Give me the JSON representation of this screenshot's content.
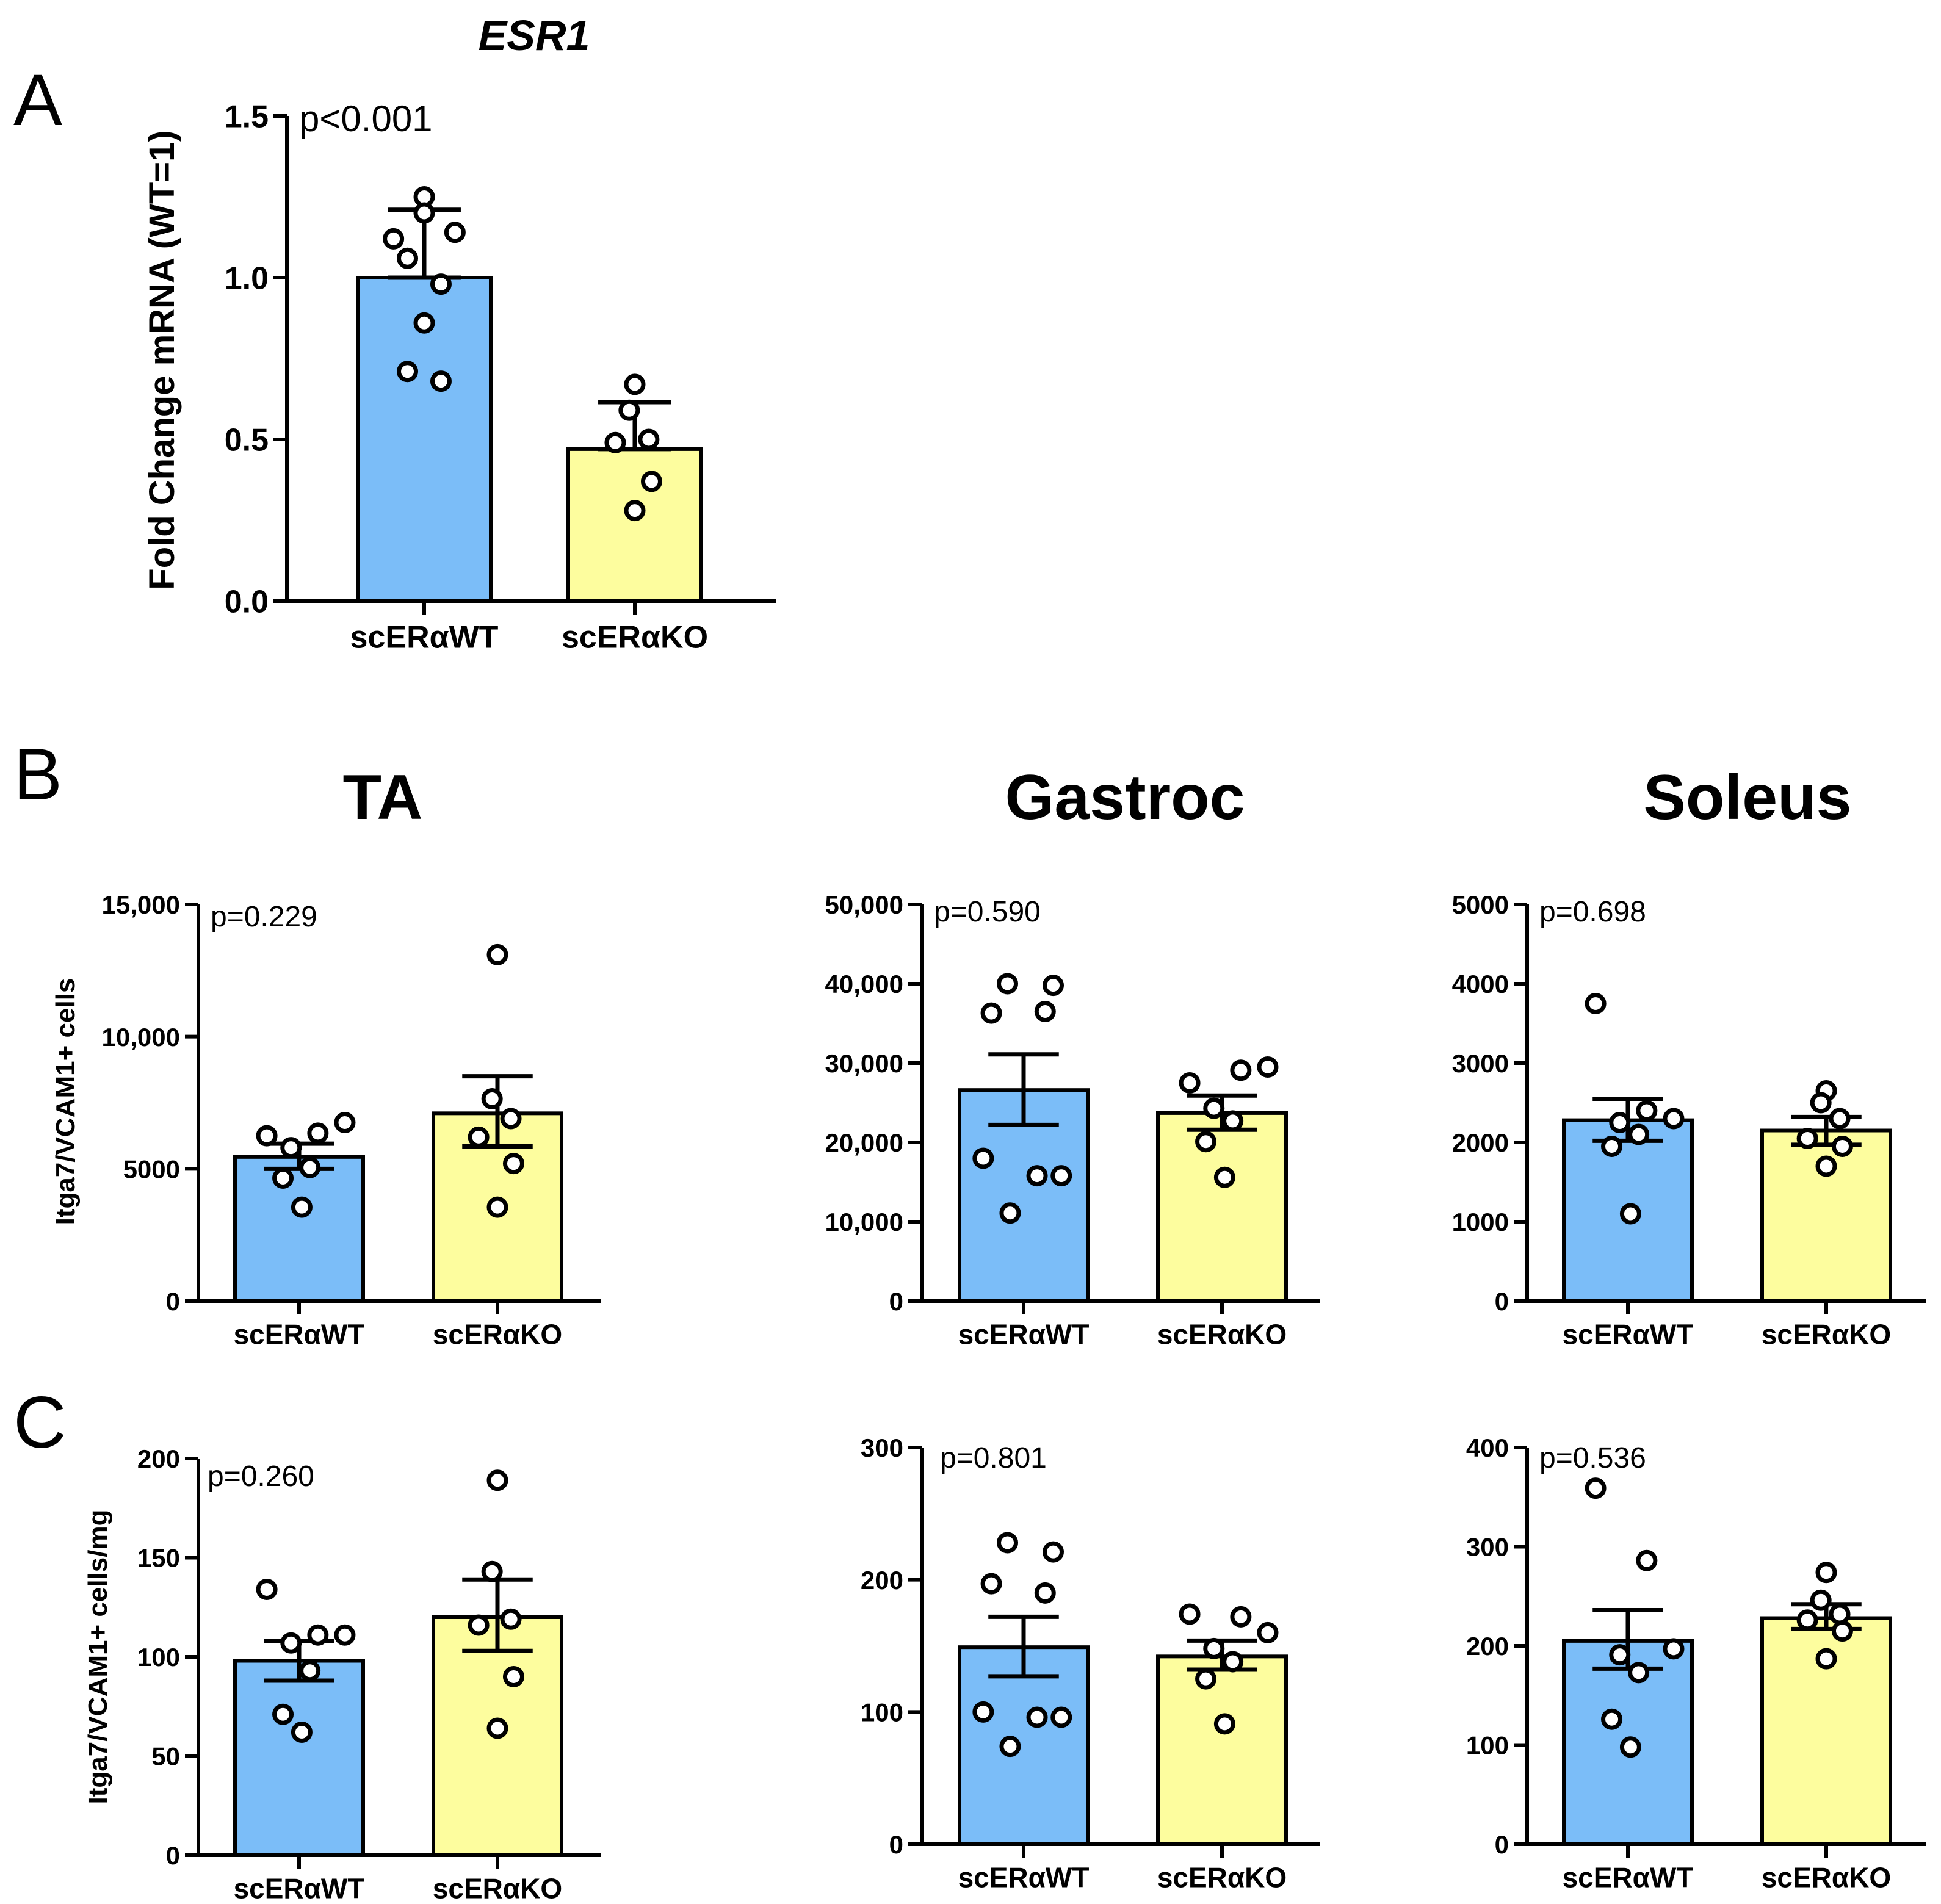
{
  "panel_letters": [
    "A",
    "B",
    "C"
  ],
  "column_titles": [
    "TA",
    "Gastroc",
    "Soleus"
  ],
  "colors": {
    "wt": "#7bbdf8",
    "ko": "#fdfd9e"
  },
  "chart_data": [
    {
      "id": "A",
      "type": "bar",
      "title": "ESR1",
      "title_italic": true,
      "ylabel": "Fold Change mRNA (WT=1)",
      "ylim": [
        0,
        1.5
      ],
      "yticks": [
        0,
        0.5,
        1.0,
        1.5
      ],
      "ytick_labels": [
        "0.0",
        "0.5",
        "1.0",
        "1.5"
      ],
      "categories": [
        "scERαWT",
        "scERαKO"
      ],
      "annotation": "p<0.001",
      "series": [
        {
          "name": "scERαWT",
          "mean": 1.0,
          "err": [
            1.0,
            1.21
          ],
          "points": [
            1.25,
            1.2,
            1.14,
            1.12,
            1.06,
            0.98,
            0.86,
            0.71,
            0.68
          ]
        },
        {
          "name": "scERαKO",
          "mean": 0.47,
          "err": [
            0.47,
            0.615
          ],
          "points": [
            0.67,
            0.59,
            0.5,
            0.49,
            0.37,
            0.28
          ]
        }
      ]
    },
    {
      "id": "B-TA",
      "type": "bar",
      "title": "",
      "ylabel": "Itga7/VCAM1+ cells",
      "ylim": [
        0,
        15000
      ],
      "yticks": [
        0,
        5000,
        10000,
        15000
      ],
      "ytick_labels": [
        "0",
        "5000",
        "10,000",
        "15,000"
      ],
      "categories": [
        "scERαWT",
        "scERαKO"
      ],
      "annotation": "p=0.229",
      "series": [
        {
          "name": "scERαWT",
          "mean": 5450,
          "err": [
            5000,
            5950
          ],
          "points": [
            6250,
            6350,
            6750,
            5800,
            5050,
            4650,
            3550
          ]
        },
        {
          "name": "scERαKO",
          "mean": 7100,
          "err": [
            5850,
            8500
          ],
          "points": [
            13100,
            7650,
            6900,
            6200,
            5200,
            3550
          ]
        }
      ]
    },
    {
      "id": "B-Gastroc",
      "type": "bar",
      "title": "",
      "ylabel": "",
      "ylim": [
        0,
        50000
      ],
      "yticks": [
        0,
        10000,
        20000,
        30000,
        40000,
        50000
      ],
      "ytick_labels": [
        "0",
        "10,000",
        "20,000",
        "30,000",
        "40,000",
        "50,000"
      ],
      "categories": [
        "scERαWT",
        "scERαKO"
      ],
      "annotation": "p=0.590",
      "series": [
        {
          "name": "scERαWT",
          "mean": 26600,
          "err": [
            22200,
            31100
          ],
          "points": [
            40000,
            39800,
            36300,
            36500,
            18000,
            15800,
            15800,
            11100
          ]
        },
        {
          "name": "scERαKO",
          "mean": 23700,
          "err": [
            21600,
            25900
          ],
          "points": [
            27500,
            29100,
            29500,
            24300,
            22700,
            20100,
            15600
          ]
        }
      ]
    },
    {
      "id": "B-Soleus",
      "type": "bar",
      "title": "",
      "ylabel": "",
      "ylim": [
        0,
        5000
      ],
      "yticks": [
        0,
        1000,
        2000,
        3000,
        4000,
        5000
      ],
      "ytick_labels": [
        "0",
        "1000",
        "2000",
        "3000",
        "4000",
        "5000"
      ],
      "categories": [
        "scERαWT",
        "scERαKO"
      ],
      "annotation": "p=0.698",
      "series": [
        {
          "name": "scERαWT",
          "mean": 2280,
          "err": [
            2020,
            2550
          ],
          "points": [
            3750,
            2400,
            2300,
            2250,
            2100,
            1950,
            1100
          ]
        },
        {
          "name": "scERαKO",
          "mean": 2150,
          "err": [
            1970,
            2320
          ],
          "points": [
            2650,
            2500,
            2300,
            2050,
            1950,
            1700
          ]
        }
      ]
    },
    {
      "id": "C-TA",
      "type": "bar",
      "title": "",
      "ylabel": "Itga7/VCAM1+ cells/mg",
      "ylim": [
        0,
        200
      ],
      "yticks": [
        0,
        50,
        100,
        150,
        200
      ],
      "ytick_labels": [
        "0",
        "50",
        "100",
        "150",
        "200"
      ],
      "categories": [
        "scERαWT",
        "scERαKO"
      ],
      "annotation": "p=0.260",
      "series": [
        {
          "name": "scERαWT",
          "mean": 98,
          "err": [
            88,
            108
          ],
          "points": [
            134,
            111,
            111,
            107,
            93,
            71,
            62
          ]
        },
        {
          "name": "scERαKO",
          "mean": 120,
          "err": [
            103,
            139
          ],
          "points": [
            189,
            143,
            119,
            116,
            90,
            64
          ]
        }
      ]
    },
    {
      "id": "C-Gastroc",
      "type": "bar",
      "title": "",
      "ylabel": "",
      "ylim": [
        0,
        300
      ],
      "yticks": [
        0,
        100,
        200,
        300
      ],
      "ytick_labels": [
        "0",
        "100",
        "200",
        "300"
      ],
      "categories": [
        "scERαWT",
        "scERαKO"
      ],
      "annotation": "p=0.801",
      "series": [
        {
          "name": "scERαWT",
          "mean": 149,
          "err": [
            127,
            172
          ],
          "points": [
            228,
            221,
            197,
            190,
            100,
            96,
            96,
            74
          ]
        },
        {
          "name": "scERαKO",
          "mean": 142,
          "err": [
            132,
            154
          ],
          "points": [
            174,
            172,
            160,
            148,
            138,
            125,
            91
          ]
        }
      ]
    },
    {
      "id": "C-Soleus",
      "type": "bar",
      "title": "",
      "ylabel": "",
      "ylim": [
        0,
        400
      ],
      "yticks": [
        0,
        100,
        200,
        300,
        400
      ],
      "ytick_labels": [
        "0",
        "100",
        "200",
        "300",
        "400"
      ],
      "categories": [
        "scERαWT",
        "scERαKO"
      ],
      "annotation": "p=0.536",
      "series": [
        {
          "name": "scERαWT",
          "mean": 205,
          "err": [
            177,
            236
          ],
          "points": [
            359,
            286,
            197,
            191,
            173,
            126,
            98
          ]
        },
        {
          "name": "scERαKO",
          "mean": 228,
          "err": [
            217,
            242
          ],
          "points": [
            274,
            246,
            232,
            226,
            215,
            187
          ]
        }
      ]
    }
  ]
}
